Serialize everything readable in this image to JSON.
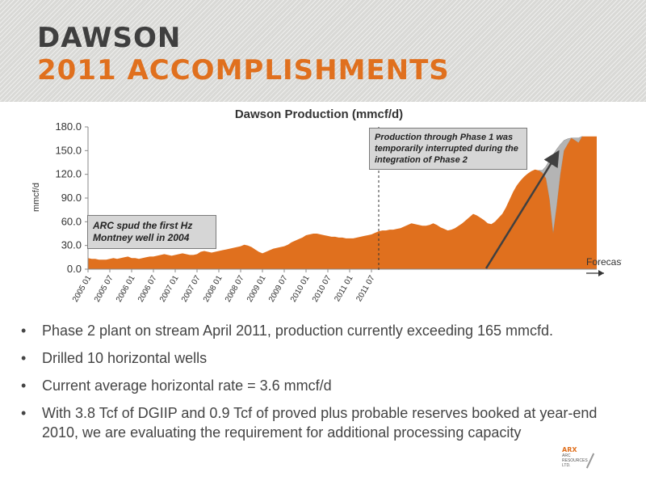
{
  "header": {
    "title_line1": "DAWSON",
    "title_line2": "2011 ACCOMPLISHMENTS"
  },
  "bullets": [
    "Phase 2 plant on stream April 2011, production currently exceeding 165 mmcfd.",
    "Drilled 10 horizontal wells",
    "Current average horizontal rate = 3.6 mmcf/d",
    "With 3.8 Tcf of DGIIP and 0.9 Tcf of proved plus probable reserves booked at year-end 2010, we are evaluating the requirement for additional processing capacity"
  ],
  "bullet_symbol": "•",
  "logo": {
    "name": "ARX",
    "line1": "ARC",
    "line2": "RESOURCES",
    "line3": "LTD."
  },
  "chart_data": {
    "type": "area",
    "title": "Dawson Production (mmcf/d)",
    "ylabel": "mmcf/d",
    "xlabel": "",
    "ylim": [
      0,
      180
    ],
    "yticks": [
      "0.0",
      "30.0",
      "60.0",
      "90.0",
      "120.0",
      "150.0",
      "180.0"
    ],
    "yticks_values": [
      0,
      30,
      60,
      90,
      120,
      150,
      180
    ],
    "grid": false,
    "xtick_labels": [
      "2005 01",
      "2005 07",
      "2006 01",
      "2006 07",
      "2007 01",
      "2007 07",
      "2008 01",
      "2008 07",
      "2009 01",
      "2009 07",
      "2010 01",
      "2010 07",
      "2011 01",
      "2011 07"
    ],
    "x_start": "2005 01",
    "x_end": "2011 12",
    "forecast_label": "Forecast",
    "forecast_start": "2011 09",
    "colors": {
      "production": "#e0701e",
      "interrupted": "#b4b4b4",
      "arrow": "#404040"
    },
    "annotations": [
      "ARC spud the first Hz Montney well in 2004",
      "Production through Phase 1 was temporarily interrupted during the integration of Phase 2"
    ],
    "series": [
      {
        "values": [
          14,
          13,
          13,
          12,
          12,
          12,
          13,
          14,
          13,
          14,
          15,
          16,
          14,
          14,
          13,
          14,
          15,
          16,
          16,
          17,
          18,
          19,
          18,
          17,
          18,
          19,
          20,
          19,
          18,
          18,
          19,
          22,
          23,
          22,
          21,
          22,
          23,
          24,
          25,
          26,
          27,
          28,
          29,
          31,
          30,
          28,
          25,
          22,
          20,
          22,
          24,
          26,
          27,
          28,
          29,
          31,
          34,
          36,
          38,
          40,
          43,
          44,
          45,
          45,
          44,
          43,
          42,
          41,
          41,
          40,
          40,
          39,
          39,
          39,
          40,
          41,
          42,
          43,
          44,
          46,
          48,
          49,
          49,
          50,
          50,
          51,
          52,
          54,
          56,
          58,
          57,
          56,
          55,
          55,
          56,
          58,
          56,
          53,
          51,
          49,
          50,
          52,
          55,
          58,
          62,
          66,
          70,
          68,
          65,
          62,
          58,
          57,
          60,
          65,
          70,
          78,
          88,
          98,
          106,
          112,
          117,
          121,
          124,
          126,
          125,
          122,
          115,
          88,
          45,
          80,
          120,
          150,
          158,
          166,
          163,
          160,
          168,
          168,
          168,
          168,
          168
        ]
      },
      {
        "values": [
          0,
          0,
          0,
          0,
          0,
          0,
          0,
          0,
          0,
          0,
          0,
          0,
          0,
          0,
          0,
          0,
          0,
          0,
          0,
          0,
          0,
          0,
          0,
          0,
          0,
          0,
          0,
          0,
          0,
          0,
          0,
          0,
          0,
          0,
          0,
          0,
          0,
          0,
          0,
          0,
          0,
          0,
          0,
          0,
          0,
          0,
          0,
          0,
          0,
          0,
          0,
          0,
          0,
          0,
          0,
          0,
          0,
          0,
          0,
          0,
          0,
          0,
          0,
          0,
          0,
          0,
          0,
          0,
          0,
          0,
          0,
          0,
          0,
          0,
          0,
          0,
          0,
          0,
          0,
          0,
          0,
          0,
          0,
          0,
          0,
          0,
          0,
          0,
          0,
          0,
          0,
          0,
          0,
          0,
          0,
          0,
          0,
          0,
          0,
          0,
          0,
          0,
          0,
          0,
          0,
          0,
          0,
          0,
          0,
          0,
          0,
          0,
          0,
          0,
          0,
          0,
          0,
          0,
          0,
          0,
          0,
          0,
          0,
          0,
          125,
          125,
          130,
          138,
          145,
          152,
          158,
          163,
          165,
          166,
          166,
          166,
          168,
          168,
          168,
          168,
          168
        ]
      }
    ]
  }
}
